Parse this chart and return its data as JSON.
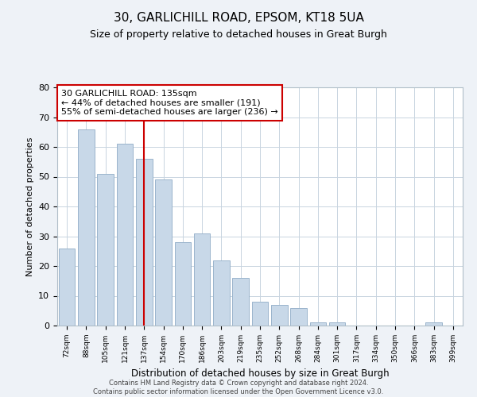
{
  "title_line1": "30, GARLICHILL ROAD, EPSOM, KT18 5UA",
  "subtitle": "Size of property relative to detached houses in Great Burgh",
  "xlabel": "Distribution of detached houses by size in Great Burgh",
  "ylabel": "Number of detached properties",
  "bar_labels": [
    "72sqm",
    "88sqm",
    "105sqm",
    "121sqm",
    "137sqm",
    "154sqm",
    "170sqm",
    "186sqm",
    "203sqm",
    "219sqm",
    "235sqm",
    "252sqm",
    "268sqm",
    "284sqm",
    "301sqm",
    "317sqm",
    "334sqm",
    "350sqm",
    "366sqm",
    "383sqm",
    "399sqm"
  ],
  "bar_values": [
    26,
    66,
    51,
    61,
    56,
    49,
    28,
    31,
    22,
    16,
    8,
    7,
    6,
    1,
    1,
    0,
    0,
    0,
    0,
    1,
    0
  ],
  "bar_color": "#c8d8e8",
  "bar_edge_color": "#9ab4cc",
  "vline_x_index": 4,
  "vline_color": "#cc0000",
  "annotation_line1": "30 GARLICHILL ROAD: 135sqm",
  "annotation_line2": "← 44% of detached houses are smaller (191)",
  "annotation_line3": "55% of semi-detached houses are larger (236) →",
  "annotation_box_color": "white",
  "annotation_box_edge": "#cc0000",
  "ylim": [
    0,
    80
  ],
  "yticks": [
    0,
    10,
    20,
    30,
    40,
    50,
    60,
    70,
    80
  ],
  "footer_line1": "Contains HM Land Registry data © Crown copyright and database right 2024.",
  "footer_line2": "Contains public sector information licensed under the Open Government Licence v3.0.",
  "bg_color": "#eef2f7",
  "plot_bg_color": "#ffffff",
  "grid_color": "#c8d4e0"
}
